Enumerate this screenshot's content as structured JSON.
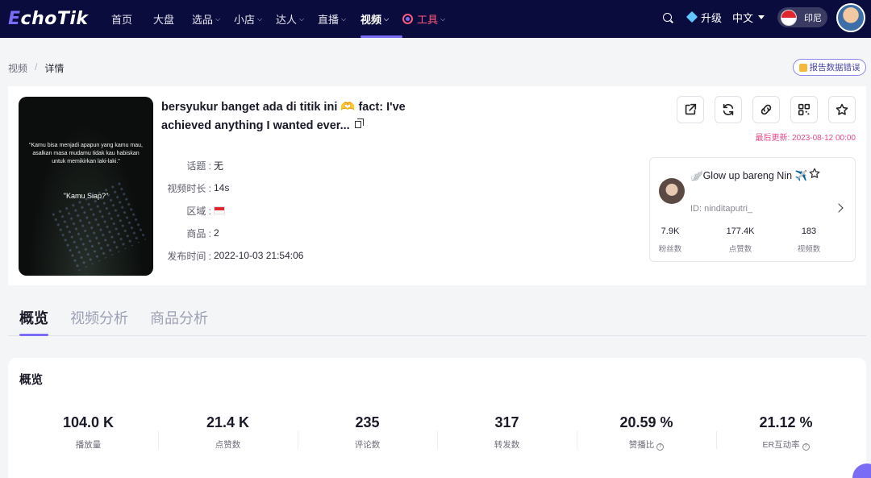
{
  "nav": {
    "logo_e": "E",
    "logo_rest": "choTik",
    "items": [
      {
        "label": "首页",
        "chevron": false
      },
      {
        "label": "大盘",
        "chevron": false
      },
      {
        "label": "选品",
        "chevron": true
      },
      {
        "label": "小店",
        "chevron": true
      },
      {
        "label": "达人",
        "chevron": true
      },
      {
        "label": "直播",
        "chevron": true
      },
      {
        "label": "视频",
        "chevron": true,
        "active": true
      },
      {
        "label": "工具",
        "chevron": true
      }
    ],
    "upgrade": "升级",
    "language": "中文",
    "region": "印尼",
    "accent": "#7b6cf6",
    "bg": "#0b0c3e"
  },
  "breadcrumb": {
    "parent": "视频",
    "separator": "/",
    "current": "详情"
  },
  "report_button": "报告数据错误",
  "video": {
    "title": "bersyukur banget ada di titik ini 🫶 fact: I've achieved anything I wanted ever...",
    "thumbnail_quote": "\"Kamu bisa menjadi apapun yang kamu mau, asalkan masa mudamu tidak kau habiskan untuk memikirkan laki-laki.\"",
    "thumbnail_caption": "\"Kamu Siap?\"",
    "meta": [
      {
        "label": "话题 :",
        "value": "无"
      },
      {
        "label": "视频时长 :",
        "value": "14s"
      },
      {
        "label": "区域 :",
        "value": ""
      },
      {
        "label": "商品 :",
        "value": "2"
      },
      {
        "label": "发布时间 :",
        "value": "2022-10-03 21:54:06"
      }
    ],
    "updated": "最后更新: 2023-08-12 00:00"
  },
  "author": {
    "name": "🪽Glow up bareng Nin ✈️",
    "id": "ID: ninditaputri_",
    "stats": [
      {
        "value": "7.9K",
        "label": "粉丝数"
      },
      {
        "value": "177.4K",
        "label": "点赞数"
      },
      {
        "value": "183",
        "label": "视频数"
      }
    ]
  },
  "tabs": [
    {
      "label": "概览",
      "active": true
    },
    {
      "label": "视频分析",
      "active": false
    },
    {
      "label": "商品分析",
      "active": false
    }
  ],
  "overview": {
    "title": "概览",
    "stats": [
      {
        "value": "104.0 K",
        "label": "播放量",
        "help": false
      },
      {
        "value": "21.4 K",
        "label": "点赞数",
        "help": false
      },
      {
        "value": "235",
        "label": "评论数",
        "help": false
      },
      {
        "value": "317",
        "label": "转发数",
        "help": false
      },
      {
        "value": "20.59 %",
        "label": "赞播比",
        "help": true
      },
      {
        "value": "21.12 %",
        "label": "ER互动率",
        "help": true
      }
    ]
  }
}
